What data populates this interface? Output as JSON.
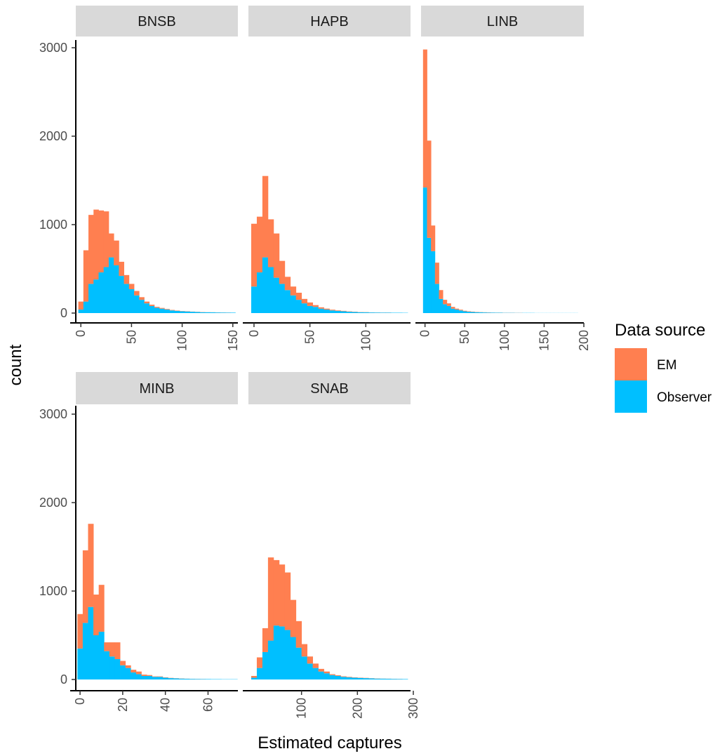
{
  "colors": {
    "em": "#FF7F50",
    "observer": "#00BFFF",
    "strip": "#D9D9D9",
    "axis": "#000000"
  },
  "chart_data": {
    "type": "bar",
    "subtype": "stacked-histogram-facets",
    "xlabel": "Estimated captures",
    "ylabel": "count",
    "ylim": [
      0,
      3000
    ],
    "yticks": [
      0,
      1000,
      2000,
      3000
    ],
    "legend": {
      "title": "Data source",
      "position": "right",
      "entries": [
        "EM",
        "Observer"
      ]
    },
    "series_order": [
      "Observer",
      "EM"
    ],
    "panels": [
      {
        "name": "BNSB",
        "xlim": [
          -5,
          155
        ],
        "xticks": [
          0,
          50,
          100,
          150
        ],
        "binwidth": 5,
        "bins_start": -2.5,
        "observer": [
          40,
          130,
          330,
          380,
          460,
          520,
          630,
          540,
          420,
          330,
          270,
          200,
          150,
          110,
          80,
          60,
          50,
          40,
          30,
          25,
          20,
          18,
          15,
          12,
          10,
          9,
          8,
          7,
          6,
          5,
          5
        ],
        "em": [
          90,
          580,
          780,
          790,
          700,
          630,
          270,
          280,
          160,
          100,
          60,
          50,
          30,
          20,
          15,
          10,
          8,
          6,
          5,
          4,
          3,
          3,
          2,
          2,
          2,
          1,
          1,
          1,
          1,
          1,
          0
        ]
      },
      {
        "name": "HAPB",
        "xlim": [
          -5,
          140
        ],
        "xticks": [
          0,
          50,
          100
        ],
        "binwidth": 5,
        "bins_start": -2.5,
        "observer": [
          300,
          460,
          630,
          520,
          400,
          330,
          260,
          200,
          150,
          110,
          80,
          70,
          50,
          40,
          30,
          25,
          20,
          15,
          12,
          10,
          8,
          7,
          6,
          5,
          5,
          4,
          4,
          3
        ],
        "em": [
          710,
          630,
          920,
          540,
          500,
          260,
          150,
          100,
          80,
          50,
          40,
          20,
          15,
          10,
          8,
          6,
          5,
          4,
          3,
          2,
          2,
          1,
          1,
          1,
          1,
          0,
          0,
          0
        ]
      },
      {
        "name": "LINB",
        "xlim": [
          -5,
          200
        ],
        "xticks": [
          0,
          50,
          100,
          150,
          200
        ],
        "binwidth": 5,
        "bins_start": -2.5,
        "observer": [
          1420,
          850,
          700,
          330,
          160,
          100,
          80,
          50,
          40,
          30,
          20,
          15,
          12,
          10,
          8,
          7,
          6,
          5,
          4,
          4,
          3,
          3,
          3,
          2,
          2,
          2,
          2,
          2,
          1,
          1,
          1,
          1,
          1,
          1,
          1,
          1,
          1,
          1,
          1
        ],
        "em": [
          1560,
          1100,
          290,
          240,
          100,
          50,
          30,
          20,
          10,
          8,
          6,
          5,
          4,
          3,
          2,
          2,
          2,
          1,
          1,
          1,
          1,
          1,
          1,
          1,
          1,
          0,
          0,
          0,
          0,
          0,
          0,
          0,
          0,
          0,
          0,
          0,
          0,
          0,
          0
        ]
      },
      {
        "name": "MINB",
        "xlim": [
          -2,
          74
        ],
        "xticks": [
          0,
          20,
          40,
          60
        ],
        "binwidth": 2.5,
        "bins_start": -1.25,
        "observer": [
          350,
          640,
          820,
          500,
          540,
          320,
          260,
          230,
          160,
          130,
          80,
          60,
          40,
          40,
          30,
          30,
          20,
          15,
          12,
          10,
          8,
          7,
          6,
          5,
          5,
          4,
          4,
          3,
          3,
          3
        ],
        "em": [
          390,
          820,
          940,
          460,
          530,
          100,
          160,
          190,
          50,
          30,
          30,
          30,
          15,
          10,
          5,
          5,
          4,
          3,
          2,
          2,
          1,
          1,
          1,
          1,
          0,
          0,
          0,
          0,
          0,
          0
        ]
      },
      {
        "name": "SNAB",
        "xlim": [
          5,
          295
        ],
        "xticks": [
          100,
          200,
          300
        ],
        "binwidth": 10,
        "bins_start": 10,
        "observer": [
          20,
          130,
          310,
          440,
          610,
          600,
          560,
          480,
          360,
          260,
          180,
          130,
          90,
          70,
          50,
          40,
          30,
          25,
          20,
          18,
          15,
          12,
          10,
          9,
          8,
          7,
          6,
          5
        ],
        "em": [
          20,
          120,
          270,
          940,
          740,
          700,
          650,
          420,
          300,
          140,
          80,
          50,
          30,
          20,
          10,
          8,
          6,
          5,
          4,
          3,
          3,
          2,
          2,
          1,
          1,
          1,
          1,
          0
        ]
      }
    ]
  }
}
